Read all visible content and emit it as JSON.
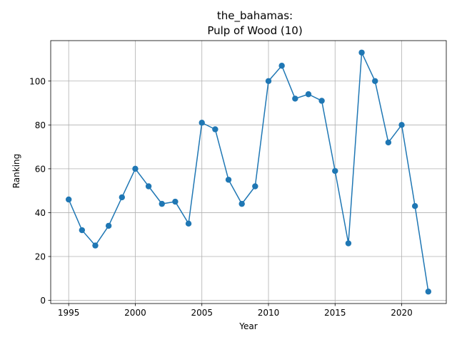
{
  "chart_data": {
    "type": "line",
    "title_line1": "the_bahamas:",
    "title_line2": "Pulp of Wood (10)",
    "xlabel": "Year",
    "ylabel": "Ranking",
    "x": [
      1995,
      1996,
      1997,
      1998,
      1999,
      2000,
      2001,
      2002,
      2003,
      2004,
      2005,
      2006,
      2007,
      2008,
      2009,
      2010,
      2011,
      2012,
      2013,
      2014,
      2015,
      2016,
      2017,
      2018,
      2019,
      2020,
      2021,
      2022
    ],
    "series": [
      {
        "values": [
          46,
          32,
          25,
          34,
          47,
          60,
          52,
          44,
          45,
          35,
          81,
          78,
          55,
          44,
          52,
          100,
          107,
          92,
          94,
          91,
          59,
          26,
          113,
          100,
          72,
          80,
          43,
          4
        ]
      }
    ],
    "xlim": [
      1993.65,
      2023.35
    ],
    "ylim": [
      -1.45,
      118.45
    ],
    "xticks": [
      "1995",
      "2000",
      "2005",
      "2010",
      "2015",
      "2020"
    ],
    "yticks": [
      "0",
      "20",
      "40",
      "60",
      "80",
      "100"
    ],
    "grid": true,
    "line_color": "#1f77b4"
  }
}
